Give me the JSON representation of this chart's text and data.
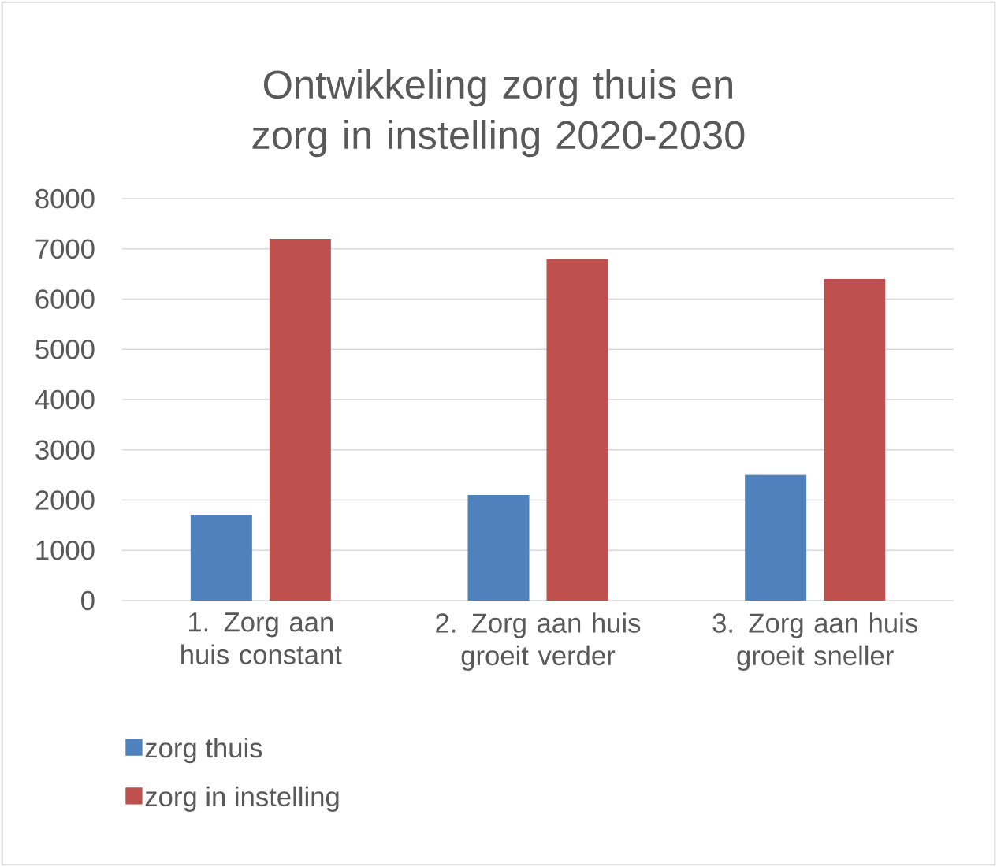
{
  "chart_data": {
    "type": "bar",
    "title": "Ontwikkeling zorg thuis en zorg in instelling 2020-2030",
    "categories": [
      "1. Zorg aan huis constant",
      "2. Zorg aan huis groeit verder",
      "3. Zorg aan huis groeit sneller"
    ],
    "series": [
      {
        "name": "zorg thuis",
        "color": "#4f81bd",
        "values": [
          1700,
          2100,
          2500
        ]
      },
      {
        "name": "zorg in instelling",
        "color": "#c0504d",
        "values": [
          7200,
          6800,
          6400
        ]
      }
    ],
    "ylim": [
      0,
      8000
    ],
    "yticks": [
      0,
      1000,
      2000,
      3000,
      4000,
      5000,
      6000,
      7000,
      8000
    ],
    "grid": "y",
    "legend": "bottom left"
  }
}
